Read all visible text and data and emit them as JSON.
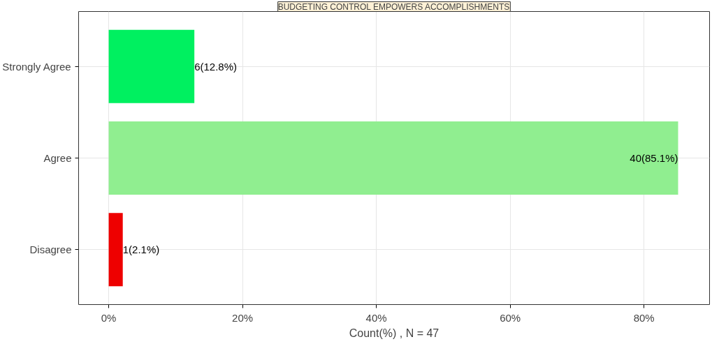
{
  "chart_data": {
    "type": "bar",
    "orientation": "horizontal",
    "title": "BUDGETING CONTROL EMPOWERS ACCOMPLISHMENTS",
    "xlabel": "Count(%) , N = 47",
    "categories": [
      "Strongly Agree",
      "Agree",
      "Disagree"
    ],
    "values": [
      12.8,
      85.1,
      2.1
    ],
    "colors": [
      "#00f060",
      "#90ee90",
      "#ee0000"
    ],
    "value_labels": [
      "6(12.8%)",
      "40(85.1%)",
      "1(2.1%)"
    ],
    "xlim": [
      -4.5,
      89.8
    ],
    "xticks": [
      {
        "value": 0,
        "label": "0%"
      },
      {
        "value": 20,
        "label": "20%"
      },
      {
        "value": 40,
        "label": "40%"
      },
      {
        "value": 60,
        "label": "60%"
      },
      {
        "value": 80,
        "label": "80%"
      }
    ],
    "grid": true
  }
}
